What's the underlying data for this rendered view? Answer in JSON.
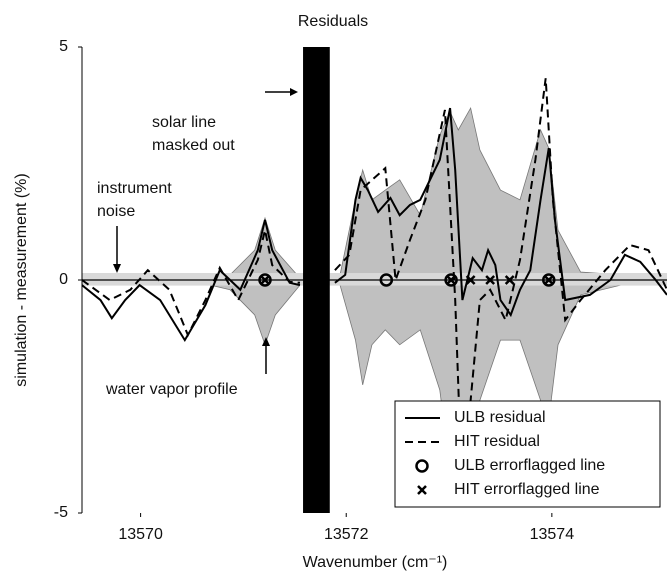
{
  "chart_data": {
    "type": "line",
    "title": "Residuals",
    "x_label": "Wavenumber (cm⁻¹)",
    "y_label": "simulation - measurement (%)",
    "xlim": [
      13569.43,
      13575.12
    ],
    "xticks": [
      13570,
      13572,
      13574
    ],
    "ylim": [
      -5,
      5
    ],
    "yticks": [
      -5,
      0,
      5
    ],
    "grid": false,
    "legend": "lower right",
    "series": [
      {
        "name": "ULB residual",
        "color": "#000000",
        "dash": false,
        "x": [
          13569.43,
          13569.61,
          13569.72,
          13569.85,
          13569.99,
          13570.19,
          13570.43,
          13570.63,
          13570.77,
          13570.97,
          13571.14,
          13571.21,
          13571.28,
          13571.45,
          13571.55,
          13571.7,
          13571.89,
          13571.99,
          13572.09,
          13572.14,
          13572.21,
          13572.31,
          13572.43,
          13572.52,
          13572.62,
          13572.72,
          13572.91,
          13573.01,
          13573.06,
          13573.13,
          13573.23,
          13573.32,
          13573.38,
          13573.45,
          13573.5,
          13573.6,
          13573.69,
          13573.79,
          13573.89,
          13573.97,
          13574.03,
          13574.13,
          13574.37,
          13574.57,
          13574.71,
          13574.86,
          13575.01,
          13575.12
        ],
        "values": [
          -0.11,
          -0.43,
          -0.82,
          -0.43,
          -0.11,
          -0.43,
          -1.29,
          -0.54,
          0.21,
          -0.21,
          0.64,
          1.29,
          0.64,
          -0.06,
          -0.11,
          null,
          -0.06,
          0.11,
          1.72,
          2.19,
          1.93,
          1.46,
          1.76,
          1.39,
          1.61,
          1.72,
          2.58,
          3.69,
          2.36,
          -0.43,
          0.47,
          0.21,
          0.64,
          0.32,
          -0.43,
          -0.75,
          -0.21,
          0.21,
          1.72,
          2.83,
          1.29,
          -0.43,
          -0.32,
          0,
          0.54,
          0.39,
          0,
          -0.32
        ]
      },
      {
        "name": "HIT residual",
        "color": "#000000",
        "dash": true,
        "x": [
          13569.43,
          13569.7,
          13569.9,
          13570.07,
          13570.28,
          13570.46,
          13570.63,
          13570.77,
          13570.95,
          13571.14,
          13571.21,
          13571.28,
          13571.45,
          13571.55,
          13571.7,
          13571.89,
          13572.03,
          13572.14,
          13572.38,
          13572.48,
          13572.62,
          13572.77,
          13572.96,
          13573.06,
          13573.13,
          13573.21,
          13573.3,
          13573.4,
          13573.55,
          13573.69,
          13573.84,
          13573.94,
          13574.01,
          13574.13,
          13574.28,
          13574.52,
          13574.76,
          13574.94,
          13575.12
        ],
        "values": [
          0,
          -0.43,
          -0.21,
          0.21,
          -0.21,
          -1.18,
          -0.43,
          0.26,
          -0.43,
          0.43,
          1.07,
          0.32,
          -0.04,
          -0.06,
          null,
          0.21,
          0.54,
          1.93,
          2.4,
          0,
          0.86,
          1.72,
          3.65,
          -0.43,
          -4.72,
          -2.58,
          -0.43,
          -0.21,
          -0.86,
          0.43,
          2.58,
          4.33,
          1.72,
          -0.86,
          -0.43,
          0.21,
          0.75,
          0.64,
          -0.21
        ]
      }
    ],
    "markers": [
      {
        "name": "ULB errorflagged line",
        "symbol": "circle",
        "x": [
          13571.21,
          13572.39,
          13573.02,
          13573.97
        ],
        "values": [
          0,
          0,
          0,
          0
        ]
      },
      {
        "name": "HIT errorflagged line",
        "symbol": "cross",
        "x": [
          13571.21,
          13573.02,
          13573.21,
          13573.4,
          13573.59,
          13573.97
        ],
        "values": [
          0,
          0,
          0,
          0,
          0,
          0
        ]
      }
    ],
    "shading": {
      "color": "#c0c0c0",
      "x": [
        13569.43,
        13570.58,
        13570.87,
        13571.11,
        13571.21,
        13571.31,
        13571.55,
        13571.94,
        13572.09,
        13572.16,
        13572.25,
        13572.38,
        13572.52,
        13572.72,
        13572.91,
        13573.01,
        13573.09,
        13573.21,
        13573.3,
        13573.5,
        13573.69,
        13573.89,
        13573.97,
        13574.06,
        13574.28,
        13574.67,
        13575.12
      ],
      "upper": [
        -0.02,
        -0.02,
        0.11,
        0.64,
        1.33,
        0.64,
        0.04,
        0.11,
        1.72,
        2.36,
        1.72,
        1.93,
        2.15,
        1.39,
        3.11,
        3.61,
        3.22,
        3.69,
        2.79,
        1.93,
        1.72,
        3.22,
        2.83,
        1.07,
        0.17,
        0.11,
        0.04
      ],
      "lower": [
        -0.02,
        -0.06,
        -0.21,
        -0.75,
        -1.39,
        -0.75,
        -0.11,
        -0.11,
        -1.29,
        -2.25,
        -1.39,
        -1.07,
        -1.39,
        -1.07,
        -2.36,
        -4.08,
        -4.51,
        -3.43,
        -2.58,
        -1.29,
        -1.29,
        -2.58,
        -3.0,
        -1.39,
        -0.32,
        -0.11,
        -0.06
      ]
    },
    "noise_band": {
      "color": "#d9d9d9",
      "range": [
        -0.12,
        0.15
      ]
    },
    "masked_region": {
      "color": "#000000",
      "x": [
        13571.58,
        13571.84
      ]
    },
    "annotations": [
      {
        "lines": [
          "solar line",
          "masked out"
        ]
      },
      {
        "lines": [
          "instrument",
          "noise"
        ]
      },
      {
        "lines": [
          "water vapor profile"
        ]
      }
    ]
  }
}
